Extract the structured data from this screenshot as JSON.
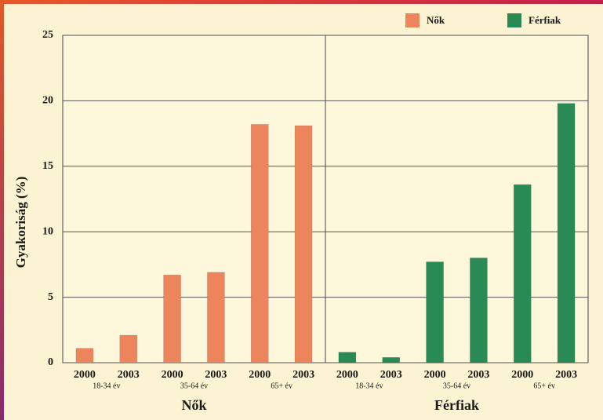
{
  "chart_data": {
    "type": "bar",
    "ylabel": "Gyakoriság (%)",
    "categories": [
      "2000",
      "2003",
      "2000",
      "2003",
      "2000",
      "2003"
    ],
    "groups": [
      "18-34 év",
      "35-64 év",
      "65+ év"
    ],
    "series": [
      {
        "name": "Nők",
        "color": "#ec845c",
        "values": [
          1.1,
          2.1,
          6.7,
          6.9,
          18.2,
          18.1
        ]
      },
      {
        "name": "Férfiak",
        "color": "#2a8a56",
        "values": [
          0.8,
          0.4,
          7.7,
          8.0,
          13.6,
          19.8
        ]
      }
    ],
    "ylim": [
      0,
      25
    ],
    "yticks": [
      0,
      5,
      10,
      15,
      20,
      25
    ],
    "grid": true,
    "legend": "top-right"
  }
}
